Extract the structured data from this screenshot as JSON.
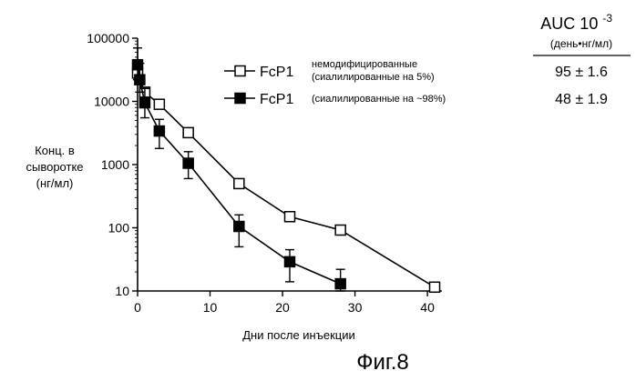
{
  "chart_data": {
    "type": "scatter",
    "title": "",
    "xlabel": "Дни после инъекции",
    "ylabel_lines": [
      "Конц. в",
      "сыворотке",
      "(нг/мл)"
    ],
    "xlim": [
      0,
      42
    ],
    "ylim": [
      10,
      100000
    ],
    "yscale": "log",
    "x_ticks": [
      0,
      10,
      20,
      30,
      40
    ],
    "y_ticks": [
      10,
      100,
      1000,
      10000,
      100000
    ],
    "y_tick_labels": [
      "10",
      "100",
      "1000",
      "10000",
      "100000"
    ],
    "grid": false,
    "legend_position": "top-right",
    "series": [
      {
        "name": "FcP1",
        "note_lines": [
          "немодифицированные",
          "(сиалилированные на 5%)"
        ],
        "marker": "open-square",
        "points": [
          {
            "x": 0,
            "y": 28000
          },
          {
            "x": 1,
            "y": 14000
          },
          {
            "x": 3,
            "y": 9000
          },
          {
            "x": 7,
            "y": 3200
          },
          {
            "x": 14,
            "y": 500
          },
          {
            "x": 21,
            "y": 150
          },
          {
            "x": 28,
            "y": 92
          },
          {
            "x": 41,
            "y": 11.5
          }
        ]
      },
      {
        "name": "FcP1",
        "note_lines": [
          "(сиалилированные на ~98%)"
        ],
        "marker": "filled-square",
        "points": [
          {
            "x": 0,
            "y": 38000,
            "err_low": 22000,
            "err_high": 70000
          },
          {
            "x": 0.3,
            "y": 22000,
            "err_low": 14000,
            "err_high": 40000
          },
          {
            "x": 1,
            "y": 9500,
            "err_low": 5500,
            "err_high": 16000
          },
          {
            "x": 3,
            "y": 3400,
            "err_low": 1800,
            "err_high": 5200
          },
          {
            "x": 7,
            "y": 1050,
            "err_low": 600,
            "err_high": 1600
          },
          {
            "x": 14,
            "y": 105,
            "err_low": 50,
            "err_high": 160
          },
          {
            "x": 21,
            "y": 29,
            "err_low": 14,
            "err_high": 45
          },
          {
            "x": 28,
            "y": 13,
            "err_low": 10,
            "err_high": 22
          }
        ]
      }
    ],
    "auc_table": {
      "header": "AUC 10",
      "header_exponent": "-3",
      "units": "(день•нг/мл)",
      "values": [
        "95 ± 1.6",
        "48 ± 1.9"
      ]
    }
  },
  "caption": "Фиг.8"
}
